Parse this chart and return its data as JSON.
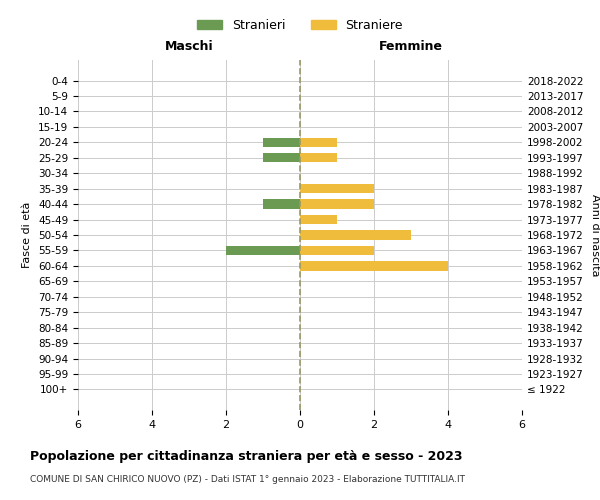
{
  "age_groups": [
    "100+",
    "95-99",
    "90-94",
    "85-89",
    "80-84",
    "75-79",
    "70-74",
    "65-69",
    "60-64",
    "55-59",
    "50-54",
    "45-49",
    "40-44",
    "35-39",
    "30-34",
    "25-29",
    "20-24",
    "15-19",
    "10-14",
    "5-9",
    "0-4"
  ],
  "birth_years": [
    "≤ 1922",
    "1923-1927",
    "1928-1932",
    "1933-1937",
    "1938-1942",
    "1943-1947",
    "1948-1952",
    "1953-1957",
    "1958-1962",
    "1963-1967",
    "1968-1972",
    "1973-1977",
    "1978-1982",
    "1983-1987",
    "1988-1992",
    "1993-1997",
    "1998-2002",
    "2003-2007",
    "2008-2012",
    "2013-2017",
    "2018-2022"
  ],
  "maschi": [
    0,
    0,
    0,
    0,
    0,
    0,
    0,
    0,
    0,
    2,
    0,
    0,
    1,
    0,
    0,
    1,
    1,
    0,
    0,
    0,
    0
  ],
  "femmine": [
    0,
    0,
    0,
    0,
    0,
    0,
    0,
    0,
    4,
    2,
    3,
    1,
    2,
    2,
    0,
    1,
    1,
    0,
    0,
    0,
    0
  ],
  "color_maschi": "#6b9a52",
  "color_femmine": "#f0bc3c",
  "title": "Popolazione per cittadinanza straniera per età e sesso - 2023",
  "subtitle": "COMUNE DI SAN CHIRICO NUOVO (PZ) - Dati ISTAT 1° gennaio 2023 - Elaborazione TUTTITALIA.IT",
  "xlabel_left": "Maschi",
  "xlabel_right": "Femmine",
  "ylabel_left": "Fasce di età",
  "ylabel_right": "Anni di nascita",
  "legend_maschi": "Stranieri",
  "legend_femmine": "Straniere",
  "xlim": 6,
  "background_color": "#ffffff",
  "grid_color": "#cccccc",
  "dashed_line_color": "#999966"
}
